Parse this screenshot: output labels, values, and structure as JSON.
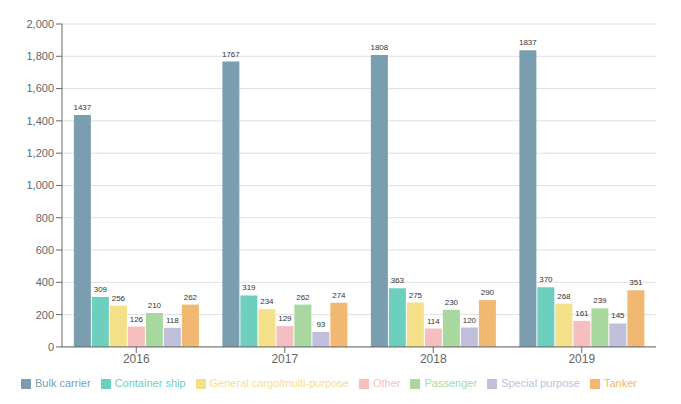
{
  "chart_data": {
    "type": "bar",
    "categories": [
      "2016",
      "2017",
      "2018",
      "2019"
    ],
    "series": [
      {
        "name": "Bulk carrier",
        "color": "#7a9eb0",
        "values": [
          1437,
          1767,
          1808,
          1837
        ]
      },
      {
        "name": "Container ship",
        "color": "#6ecfbf",
        "values": [
          309,
          319,
          363,
          370
        ]
      },
      {
        "name": "General cargo/multi-purpose",
        "color": "#f5e08a",
        "values": [
          256,
          234,
          275,
          268
        ]
      },
      {
        "name": "Other",
        "color": "#f5bfbf",
        "values": [
          126,
          129,
          114,
          161
        ]
      },
      {
        "name": "Passenger",
        "color": "#a8d8a0",
        "values": [
          210,
          262,
          230,
          239
        ]
      },
      {
        "name": "Special purpose",
        "color": "#c0c0dc",
        "values": [
          118,
          93,
          120,
          145
        ]
      },
      {
        "name": "Tanker",
        "color": "#f0b870",
        "values": [
          262,
          274,
          290,
          351
        ]
      }
    ],
    "ylim": [
      0,
      2000
    ],
    "yticks": [
      0,
      200,
      400,
      600,
      800,
      {
        "value": 1000,
        "label": "1,000"
      },
      {
        "value": 1200,
        "label": "1,200"
      },
      {
        "value": 1400,
        "label": "1,400"
      },
      {
        "value": 1600,
        "label": "1,600"
      },
      {
        "value": 1800,
        "label": "1,800"
      },
      {
        "value": 2000,
        "label": "2,000"
      }
    ],
    "grid": true,
    "legend": "bottom",
    "data_labels": true
  }
}
